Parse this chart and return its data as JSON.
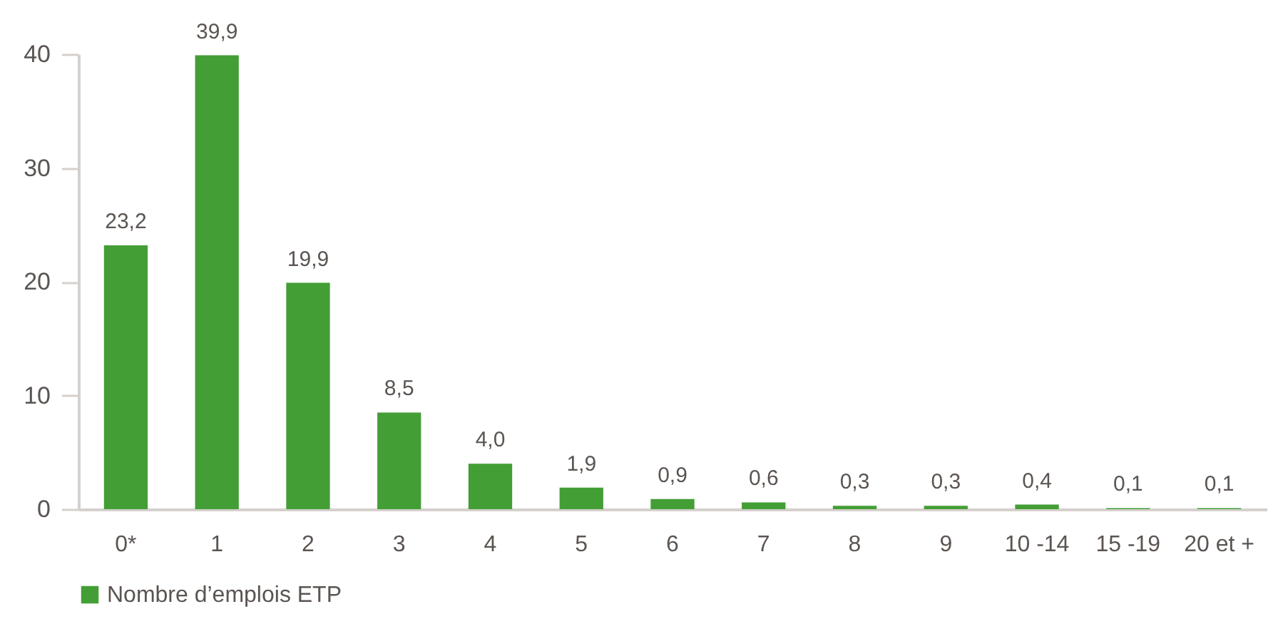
{
  "chart_data": {
    "type": "bar",
    "categories": [
      "0*",
      "1",
      "2",
      "3",
      "4",
      "5",
      "6",
      "7",
      "8",
      "9",
      "10 -14",
      "15 -19",
      "20 et +"
    ],
    "series": [
      {
        "name": "Nombre d’emplois ETP",
        "color": "#449e36",
        "values": [
          23.2,
          39.9,
          19.9,
          8.5,
          4.0,
          1.9,
          0.9,
          0.6,
          0.3,
          0.3,
          0.4,
          0.1,
          0.1
        ],
        "value_labels": [
          "23,2",
          "39,9",
          "19,9",
          "8,5",
          "4,0",
          "1,9",
          "0,9",
          "0,6",
          "0,3",
          "0,3",
          "0,4",
          "0,1",
          "0,1"
        ]
      }
    ],
    "ylim": [
      0,
      40
    ],
    "yticks": [
      0,
      10,
      20,
      30,
      40
    ],
    "grid": false,
    "legend": "bottom left"
  }
}
